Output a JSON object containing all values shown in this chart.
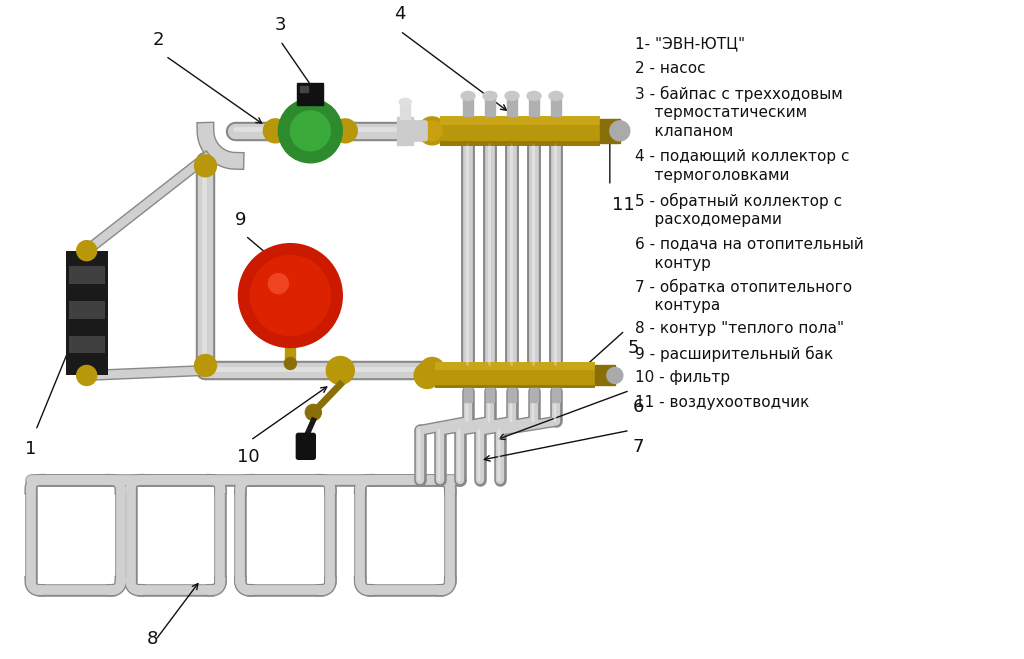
{
  "bg_color": "#ffffff",
  "text_color": "#111111",
  "line_color": "#111111",
  "pipe_color_light": "#d0d0d0",
  "pipe_color_dark": "#a0a0a0",
  "pipe_color_edge": "#888888",
  "brass_color": "#b8980a",
  "dark_brass": "#8a6e08",
  "green_color": "#2d8a2d",
  "red_color": "#cc1a00",
  "black_color": "#111111",
  "legend_lines": [
    "1- \"ЭВН-ЮТЦ\"",
    "2 - насос",
    "3 - байпас с трехходовым",
    "    термостатическим",
    "    клапаном",
    "4 - подающий коллектор с",
    "    термоголовками",
    "5 - обратный коллектор с",
    "    расходомерами",
    "6 - подача на отопительный",
    "    контур",
    "7 - обратка отопительного",
    "    контура",
    "8 - контур \"теплого пола\"",
    "9 - расширительный бак",
    "10 - фильтр",
    "11 - воздухоотводчик"
  ]
}
